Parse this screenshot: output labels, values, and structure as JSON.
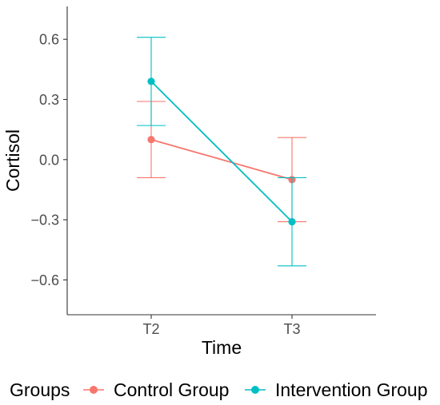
{
  "chart_data": {
    "type": "line",
    "title": "",
    "xlabel": "Time",
    "ylabel": "Cortisol",
    "categories": [
      "T2",
      "T3"
    ],
    "ylim": [
      -0.75,
      0.75
    ],
    "yticks": [
      -0.6,
      -0.3,
      0.0,
      0.3,
      0.6
    ],
    "ytick_labels": [
      "−0.6",
      "−0.3",
      "0.0",
      "0.3",
      "0.6"
    ],
    "grid": false,
    "legend": {
      "title": "Groups",
      "position": "bottom"
    },
    "series": [
      {
        "name": "Control Group",
        "color": "#F8766D",
        "values": [
          0.1,
          -0.1
        ],
        "error_lower": [
          -0.09,
          -0.31
        ],
        "error_upper": [
          0.29,
          0.11
        ]
      },
      {
        "name": "Intervention Group",
        "color": "#00BFC4",
        "values": [
          0.39,
          -0.31
        ],
        "error_lower": [
          0.17,
          -0.53
        ],
        "error_upper": [
          0.61,
          -0.09
        ]
      }
    ]
  }
}
